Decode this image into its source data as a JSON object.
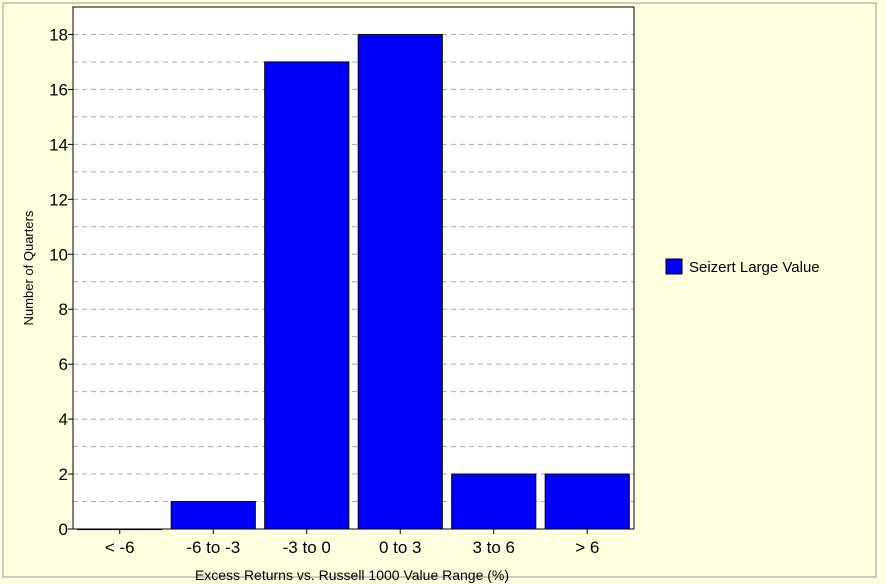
{
  "colors": {
    "background": "#ffffe0",
    "plot_background": "#ffffff",
    "bar_fill": "#0000ff",
    "bar_stroke": "#000000",
    "gridline": "#aaaaaa",
    "frame": "#999999"
  },
  "chart_data": {
    "type": "bar",
    "title": "",
    "xlabel": "Excess Returns vs. Russell 1000 Value Range (%)",
    "ylabel": "Number of Quarters",
    "categories": [
      "< -6",
      "-6 to -3",
      "-3 to 0",
      "0 to 3",
      "3 to 6",
      "> 6"
    ],
    "series": [
      {
        "name": "Seizert Large Value",
        "values": [
          0,
          1,
          17,
          18,
          2,
          2
        ]
      }
    ],
    "ylim": [
      0,
      19
    ],
    "yticks": [
      0,
      2,
      4,
      6,
      8,
      10,
      12,
      14,
      16,
      18
    ],
    "grid": "horizontal dashed",
    "legend": "right"
  }
}
